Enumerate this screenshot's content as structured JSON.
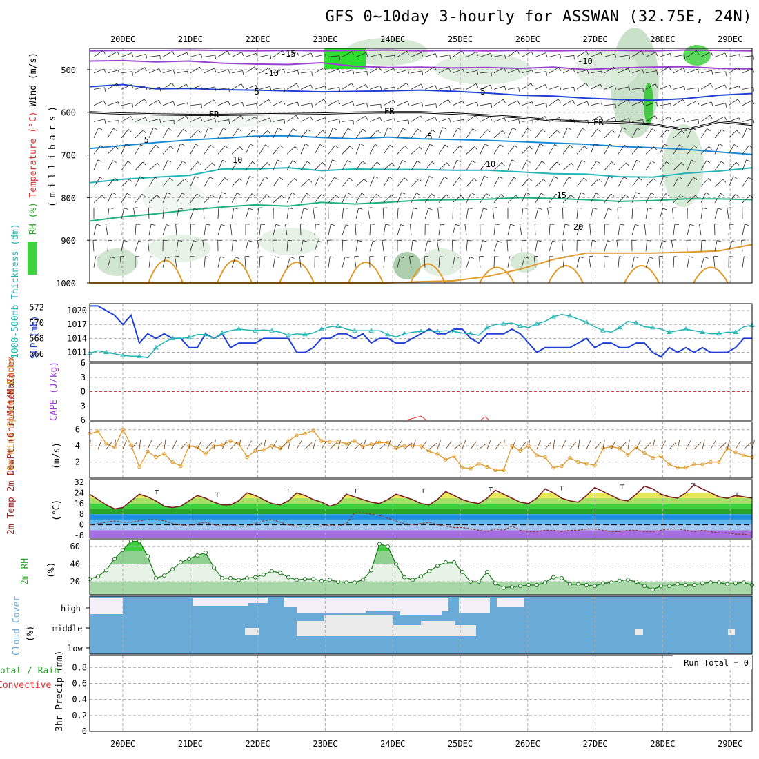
{
  "title": "GFS 0~10day 3-hourly for ASSWAN (32.75E, 24N)",
  "colors": {
    "grid": "#aaaaaa",
    "blue": "#1f3fd6",
    "cyan": "#22b5b5",
    "orange": "#e09a2a",
    "green": "#2aa52a",
    "red": "#e03030",
    "purple": "#9a3fd0",
    "cloud": "#6aaad6"
  },
  "chart_data": [
    {
      "type": "line",
      "name": "pressure-cross-section",
      "xlabels": [
        "20DEC",
        "21DEC",
        "22DEC",
        "23DEC",
        "24DEC",
        "25DEC",
        "26DEC",
        "27DEC",
        "28DEC",
        "29DEC"
      ],
      "ylabel_parts": [
        {
          "text": "RH (%)",
          "color": "#2aa52a"
        },
        {
          "text": "Temperature (°C)",
          "color": "#e03030"
        },
        {
          "text": "Wind (m/s)",
          "color": "#000000"
        }
      ],
      "yaxis_label": "(millibars)",
      "ytick_labels": [
        "500",
        "600",
        "700",
        "800",
        "900",
        "1000"
      ],
      "ylim": [
        450,
        1000
      ],
      "isotherms": [
        {
          "label": "-15",
          "color": "#9a3fd0",
          "y": [
            456,
            455,
            455,
            454,
            455,
            456,
            455,
            456,
            455,
            454,
            456,
            455,
            456,
            455,
            456,
            455,
            455,
            456,
            454,
            455,
            456
          ]
        },
        {
          "label": "-10",
          "color": "#9a3fd0",
          "y": [
            480,
            479,
            482,
            480,
            485,
            487,
            488,
            484,
            492,
            495,
            494,
            496,
            495,
            497,
            494,
            500,
            496,
            494,
            493,
            497,
            498
          ]
        },
        {
          "label": "-5",
          "color": "#1f3fd6",
          "y": [
            540,
            535,
            545,
            544,
            547,
            548,
            550,
            552,
            551,
            550,
            548,
            551,
            555,
            560,
            562,
            567,
            570,
            572,
            568,
            560,
            556
          ]
        },
        {
          "label": "FR",
          "color": "#000000",
          "y": [
            600,
            603,
            605,
            606,
            606,
            605,
            604,
            603,
            601,
            600,
            600,
            603,
            607,
            612,
            619,
            622,
            624,
            628,
            641,
            622,
            629
          ]
        },
        {
          "label": "5",
          "color": "#1a8ad6",
          "y": [
            685,
            678,
            671,
            665,
            661,
            656,
            655,
            659,
            662,
            658,
            662,
            664,
            666,
            669,
            672,
            675,
            680,
            683,
            687,
            693,
            699
          ]
        },
        {
          "label": "10",
          "color": "#22b5b5",
          "y": [
            765,
            757,
            752,
            748,
            733,
            733,
            730,
            737,
            733,
            734,
            734,
            736,
            736,
            740,
            744,
            745,
            751,
            752,
            743,
            738,
            730
          ]
        },
        {
          "label": "15",
          "color": "#21b080",
          "y": [
            855,
            845,
            838,
            829,
            822,
            817,
            820,
            811,
            815,
            811,
            806,
            805,
            804,
            800,
            802,
            805,
            809,
            807,
            803,
            803,
            805
          ]
        },
        {
          "label": "20",
          "color": "#e09a2a",
          "y": [
            1000,
            1000,
            1000,
            1000,
            1000,
            1000,
            1000,
            1000,
            1000,
            1000,
            997,
            995,
            985,
            968,
            945,
            930,
            930,
            930,
            928,
            925,
            910
          ]
        }
      ],
      "labels": [
        {
          "text": "-15",
          "day": 2.45
        },
        {
          "text": "-10",
          "day": 2.2
        },
        {
          "text": "-10",
          "day": 5.85
        },
        {
          "text": "-5",
          "day": 1.95
        },
        {
          "text": "-5",
          "day": 5.3
        },
        {
          "text": "FR",
          "day": 1.1
        },
        {
          "text": "FR",
          "day": 3.65
        },
        {
          "text": "FR",
          "day": 6.95
        },
        {
          "text": "-5",
          "day": 0.3
        },
        {
          "text": "5",
          "day": 4.1
        },
        {
          "text": "10",
          "day": 1.2
        },
        {
          "text": "10",
          "day": 4.55
        },
        {
          "text": "15",
          "day": 6.35
        },
        {
          "text": "20",
          "day": 6.6
        }
      ]
    },
    {
      "type": "line",
      "name": "slp-thickness",
      "y1label": "1000-500mb Thickness (dm)",
      "y2label": "SLP (mb)",
      "y1ticks": [
        "566",
        "568",
        "570",
        "572"
      ],
      "y2ticks": [
        "1011",
        "1014",
        "1017",
        "1020"
      ],
      "slp": [
        1021,
        1021,
        1020,
        1019,
        1017,
        1019,
        1013,
        1015,
        1014,
        1015,
        1014,
        1014,
        1012,
        1012,
        1015,
        1014,
        1015,
        1012,
        1013,
        1013,
        1013,
        1014,
        1014,
        1014,
        1014,
        1011,
        1011,
        1012,
        1014,
        1014,
        1015,
        1015,
        1014,
        1015,
        1013,
        1014,
        1014,
        1013,
        1013,
        1014,
        1015,
        1016,
        1015,
        1015,
        1016,
        1016,
        1014,
        1013,
        1015,
        1015,
        1015,
        1016,
        1015,
        1013,
        1011,
        1012,
        1012,
        1012,
        1012,
        1013,
        1014,
        1012,
        1013,
        1013,
        1012,
        1012,
        1013,
        1013,
        1011,
        1010,
        1012,
        1011,
        1012,
        1011,
        1012,
        1011,
        1011,
        1011,
        1012,
        1014,
        1014
      ],
      "thick": [
        566.1,
        566.4,
        566.2,
        566.0,
        565.8,
        565.7,
        565.7,
        565.5,
        566.8,
        567.5,
        568.0,
        568.0,
        568.1,
        568.5,
        568.5,
        568.0,
        568.7,
        569.0,
        569.2,
        569.1,
        569.0,
        569.1,
        569.0,
        568.8,
        568.4,
        568.6,
        568.5,
        568.7,
        569.2,
        569.5,
        569.6,
        569.2,
        569.0,
        569.0,
        569.0,
        569.0,
        568.5,
        568.2,
        568.6,
        568.8,
        568.9,
        569.0,
        568.9,
        569.0,
        568.9,
        568.7,
        568.6,
        568.4,
        569.4,
        569.8,
        569.9,
        570.0,
        569.6,
        569.4,
        569.9,
        570.2,
        570.8,
        571.1,
        570.9,
        570.5,
        570.1,
        569.5,
        569.0,
        568.8,
        569.4,
        570.2,
        570.0,
        569.5,
        569.4,
        569.2,
        568.8,
        569.0,
        569.2,
        569.0,
        568.8,
        568.6,
        568.6,
        568.8,
        568.8,
        569.5,
        569.7
      ]
    },
    {
      "type": "line",
      "name": "lifted-index-cape",
      "y1label": "Lifted Index",
      "y2label": "CAPE (J/kg)",
      "yticks": [
        "6",
        "3",
        "0",
        "3",
        "6"
      ]
    },
    {
      "type": "line",
      "name": "wind-10m",
      "ylabel": "10m Wind Speed & Barbs",
      "unit": "(m/s)",
      "yticks": [
        "2",
        "4",
        "6"
      ],
      "speed": [
        5.5,
        5.8,
        4.3,
        3.8,
        6.0,
        4.1,
        1.4,
        3.3,
        2.6,
        3.0,
        2.0,
        1.5,
        4.0,
        3.8,
        3.0,
        4.0,
        4.1,
        4.6,
        4.3,
        2.6,
        3.4,
        3.5,
        4.0,
        3.7,
        4.6,
        5.3,
        5.5,
        5.9,
        4.6,
        4.5,
        4.5,
        4.3,
        4.6,
        3.9,
        4.2,
        4.4,
        4.4,
        3.7,
        4.0,
        4.0,
        4.0,
        3.3,
        3.0,
        2.3,
        2.7,
        1.3,
        1.2,
        1.8,
        1.4,
        1.0,
        1.0,
        4.0,
        3.4,
        4.0,
        2.8,
        2.6,
        1.3,
        1.5,
        2.5,
        2.0,
        1.8,
        1.6,
        3.7,
        3.9,
        3.7,
        2.9,
        3.8,
        3.1,
        2.5,
        2.7,
        1.7,
        1.3,
        1.3,
        1.7,
        1.7,
        2.0,
        2.0,
        3.7,
        3.2,
        2.8,
        2.6
      ]
    },
    {
      "type": "area",
      "name": "temperature-2m",
      "ylabel": "2m Temp 2m DewPt (6hr Min/Max)",
      "unit": "(°C)",
      "yticks": [
        "-8",
        "0",
        "8",
        "16",
        "24",
        "32"
      ],
      "temp": [
        23,
        19,
        15,
        12,
        13,
        18,
        23,
        21,
        18,
        14,
        13,
        14,
        18,
        22,
        20,
        17,
        15,
        15,
        18,
        24,
        22,
        19,
        16,
        15,
        18,
        24,
        22,
        19,
        17,
        14,
        16,
        23,
        21,
        19,
        17,
        16,
        19,
        23,
        21,
        19,
        16,
        15,
        19,
        25,
        22,
        19,
        17,
        16,
        20,
        26,
        23,
        20,
        17,
        16,
        20,
        27,
        24,
        20,
        18,
        17,
        22,
        28,
        25,
        22,
        19,
        18,
        23,
        29,
        27,
        23,
        21,
        20,
        24,
        30,
        27,
        24,
        21,
        20,
        22,
        21,
        20
      ],
      "dewpt": [
        0,
        1,
        2,
        3,
        2,
        2,
        3,
        4,
        4,
        3,
        1,
        0,
        -1,
        1,
        2,
        0,
        -1,
        0,
        -1,
        -1,
        1,
        3,
        4,
        2,
        0,
        -1,
        -1,
        -1,
        -1,
        0,
        -1,
        1,
        9,
        9,
        8,
        7,
        5,
        3,
        1,
        0,
        1,
        2,
        0,
        -1,
        -2,
        -2,
        -3,
        -4,
        -5,
        -3,
        -4,
        -1,
        -4,
        -5,
        -5,
        -4,
        -4,
        -5,
        -4,
        -4,
        -3,
        -3,
        -4,
        -5,
        -5,
        -4,
        -4,
        -5,
        -5,
        -4,
        -3,
        -3,
        -4,
        -5,
        -4,
        -5,
        -6,
        -6,
        -7,
        -7,
        -8
      ]
    },
    {
      "type": "area",
      "name": "rh-2m",
      "ylabel": "2m RH",
      "unit": "(%)",
      "yticks": [
        "20",
        "40",
        "60"
      ],
      "rh": [
        23,
        26,
        33,
        46,
        56,
        66,
        66,
        49,
        24,
        27,
        34,
        42,
        46,
        50,
        53,
        36,
        24,
        24,
        22,
        24,
        25,
        28,
        32,
        30,
        25,
        22,
        23,
        23,
        21,
        22,
        20,
        19,
        19,
        22,
        33,
        63,
        60,
        40,
        25,
        22,
        26,
        32,
        38,
        42,
        42,
        31,
        20,
        20,
        31,
        18,
        13,
        14,
        15,
        16,
        16,
        19,
        25,
        24,
        17,
        17,
        16,
        15,
        18,
        19,
        21,
        22,
        20,
        15,
        11,
        15,
        15,
        17,
        16,
        16,
        18,
        19,
        19,
        17,
        18,
        19,
        16
      ]
    },
    {
      "type": "heatmap",
      "name": "cloud-cover",
      "ylabel": "Cloud Cover",
      "unit": "(%)",
      "levels": [
        "high",
        "middle",
        "low"
      ]
    },
    {
      "type": "bar",
      "name": "precip-3hr",
      "ylabel": "3hr Precip (mm)",
      "legend": [
        "Total / Rain",
        "Convective"
      ],
      "yticks": [
        "0",
        "0.2",
        "0.4",
        "0.6",
        "0.8"
      ],
      "run_total": "Run Total = 0",
      "values": []
    }
  ]
}
